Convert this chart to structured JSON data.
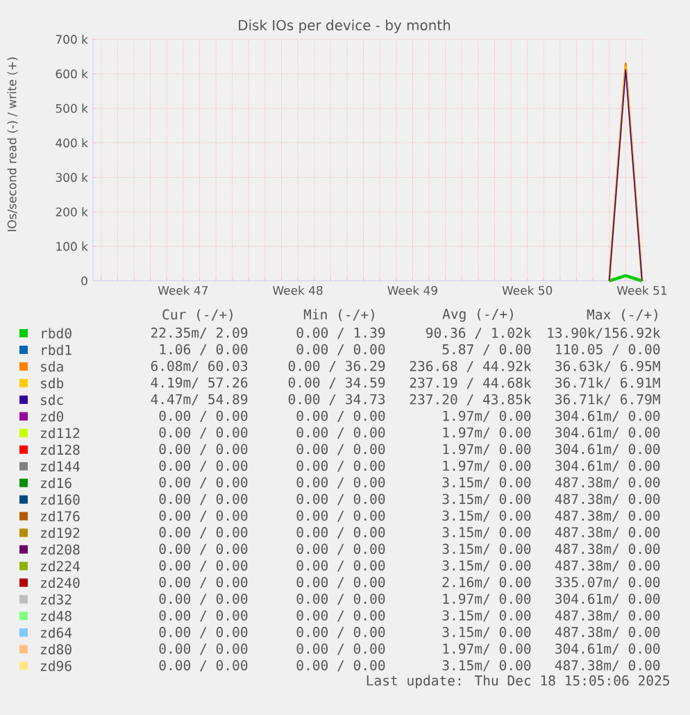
{
  "chart_data": {
    "type": "line",
    "title": "Disk IOs per device - by month",
    "ylabel": "IOs/second read (-) / write (+)",
    "categories": [
      null,
      null,
      null,
      null,
      null,
      "Week 47",
      null,
      null,
      null,
      null,
      null,
      null,
      "Week 48",
      null,
      null,
      null,
      null,
      null,
      null,
      "Week 49",
      null,
      null,
      null,
      null,
      null,
      null,
      "Week 50",
      null,
      null,
      null,
      null,
      null,
      null,
      "Week 51"
    ],
    "ylim": [
      0,
      700000
    ],
    "yticks": [
      0,
      {
        "value": 100000,
        "label": "100 k"
      },
      {
        "value": 200000,
        "label": "200 k"
      },
      {
        "value": 300000,
        "label": "300 k"
      },
      {
        "value": 400000,
        "label": "400 k"
      },
      {
        "value": 500000,
        "label": "500 k"
      },
      {
        "value": 600000,
        "label": "600 k"
      },
      {
        "value": 700000,
        "label": "700 k"
      }
    ],
    "grid": true,
    "legend": "bottom",
    "marker": "none",
    "line_style": "solid",
    "series": [
      {
        "name": "rbd0",
        "color": "#00cc00",
        "values": [
          null,
          null,
          null,
          null,
          null,
          null,
          null,
          null,
          null,
          null,
          null,
          null,
          null,
          null,
          null,
          null,
          null,
          null,
          null,
          null,
          null,
          null,
          null,
          null,
          null,
          null,
          null,
          null,
          null,
          null,
          null,
          0,
          15000,
          0
        ]
      },
      {
        "name": "rbd1",
        "color": "#0066b3",
        "values": [
          null,
          null,
          null,
          null,
          null,
          null,
          null,
          null,
          null,
          null,
          null,
          null,
          null,
          null,
          null,
          null,
          null,
          null,
          null,
          null,
          null,
          null,
          null,
          null,
          null,
          null,
          null,
          null,
          null,
          null,
          null,
          null,
          null,
          null
        ]
      },
      {
        "name": "sda",
        "color": "#ff8000",
        "values": [
          null,
          null,
          null,
          null,
          null,
          null,
          null,
          null,
          null,
          null,
          null,
          null,
          null,
          null,
          null,
          null,
          null,
          null,
          null,
          null,
          null,
          null,
          null,
          null,
          null,
          null,
          null,
          null,
          null,
          null,
          null,
          0,
          630000,
          0
        ]
      },
      {
        "name": "sdb",
        "color": "#ffcc00",
        "values": [
          null,
          null,
          null,
          null,
          null,
          null,
          null,
          null,
          null,
          null,
          null,
          null,
          null,
          null,
          null,
          null,
          null,
          null,
          null,
          null,
          null,
          null,
          null,
          null,
          null,
          null,
          null,
          null,
          null,
          null,
          null,
          0,
          620000,
          0
        ]
      },
      {
        "name": "sdc",
        "color": "#330099",
        "values": [
          null,
          null,
          null,
          null,
          null,
          null,
          null,
          null,
          null,
          null,
          null,
          null,
          null,
          null,
          null,
          null,
          null,
          null,
          null,
          null,
          null,
          null,
          null,
          null,
          null,
          null,
          null,
          null,
          null,
          null,
          null,
          0,
          612000,
          0
        ]
      },
      {
        "name": "zd0",
        "color": "#990099",
        "values": [
          null,
          null,
          null,
          null,
          null,
          null,
          null,
          null,
          null,
          null,
          null,
          null,
          null,
          null,
          null,
          null,
          null,
          null,
          null,
          null,
          null,
          null,
          null,
          null,
          null,
          null,
          null,
          null,
          null,
          null,
          null,
          null,
          null,
          null
        ]
      },
      {
        "name": "zd112",
        "color": "#ccff00",
        "values": [
          null,
          null,
          null,
          null,
          null,
          null,
          null,
          null,
          null,
          null,
          null,
          null,
          null,
          null,
          null,
          null,
          null,
          null,
          null,
          null,
          null,
          null,
          null,
          null,
          null,
          null,
          null,
          null,
          null,
          null,
          null,
          null,
          null,
          null
        ]
      },
      {
        "name": "zd128",
        "color": "#ff0000",
        "values": [
          null,
          null,
          null,
          null,
          null,
          null,
          null,
          null,
          null,
          null,
          null,
          null,
          null,
          null,
          null,
          null,
          null,
          null,
          null,
          null,
          null,
          null,
          null,
          null,
          null,
          null,
          null,
          null,
          null,
          null,
          null,
          null,
          null,
          null
        ]
      },
      {
        "name": "zd144",
        "color": "#808080",
        "values": [
          null,
          null,
          null,
          null,
          null,
          null,
          null,
          null,
          null,
          null,
          null,
          null,
          null,
          null,
          null,
          null,
          null,
          null,
          null,
          null,
          null,
          null,
          null,
          null,
          null,
          null,
          null,
          null,
          null,
          null,
          null,
          null,
          null,
          null
        ]
      },
      {
        "name": "zd16",
        "color": "#008f00",
        "values": [
          null,
          null,
          null,
          null,
          null,
          null,
          null,
          null,
          null,
          null,
          null,
          null,
          null,
          null,
          null,
          null,
          null,
          null,
          null,
          null,
          null,
          null,
          null,
          null,
          null,
          null,
          null,
          null,
          null,
          null,
          null,
          null,
          null,
          null
        ]
      },
      {
        "name": "zd160",
        "color": "#00487d",
        "values": [
          null,
          null,
          null,
          null,
          null,
          null,
          null,
          null,
          null,
          null,
          null,
          null,
          null,
          null,
          null,
          null,
          null,
          null,
          null,
          null,
          null,
          null,
          null,
          null,
          null,
          null,
          null,
          null,
          null,
          null,
          null,
          null,
          null,
          null
        ]
      },
      {
        "name": "zd176",
        "color": "#b35a00",
        "values": [
          null,
          null,
          null,
          null,
          null,
          null,
          null,
          null,
          null,
          null,
          null,
          null,
          null,
          null,
          null,
          null,
          null,
          null,
          null,
          null,
          null,
          null,
          null,
          null,
          null,
          null,
          null,
          null,
          null,
          null,
          null,
          null,
          null,
          null
        ]
      },
      {
        "name": "zd192",
        "color": "#b38f00",
        "values": [
          null,
          null,
          null,
          null,
          null,
          null,
          null,
          null,
          null,
          null,
          null,
          null,
          null,
          null,
          null,
          null,
          null,
          null,
          null,
          null,
          null,
          null,
          null,
          null,
          null,
          null,
          null,
          null,
          null,
          null,
          null,
          null,
          null,
          null
        ]
      },
      {
        "name": "zd208",
        "color": "#6b006b",
        "values": [
          null,
          null,
          null,
          null,
          null,
          null,
          null,
          null,
          null,
          null,
          null,
          null,
          null,
          null,
          null,
          null,
          null,
          null,
          null,
          null,
          null,
          null,
          null,
          null,
          null,
          null,
          null,
          null,
          null,
          null,
          null,
          null,
          null,
          null
        ]
      },
      {
        "name": "zd224",
        "color": "#8fb300",
        "values": [
          null,
          null,
          null,
          null,
          null,
          null,
          null,
          null,
          null,
          null,
          null,
          null,
          null,
          null,
          null,
          null,
          null,
          null,
          null,
          null,
          null,
          null,
          null,
          null,
          null,
          null,
          null,
          null,
          null,
          null,
          null,
          null,
          null,
          null
        ]
      },
      {
        "name": "zd240",
        "color": "#b30000",
        "values": [
          null,
          null,
          null,
          null,
          null,
          null,
          null,
          null,
          null,
          null,
          null,
          null,
          null,
          null,
          null,
          null,
          null,
          null,
          null,
          null,
          null,
          null,
          null,
          null,
          null,
          null,
          null,
          null,
          null,
          null,
          null,
          null,
          null,
          null
        ]
      },
      {
        "name": "zd32",
        "color": "#bebebe",
        "values": [
          null,
          null,
          null,
          null,
          null,
          null,
          null,
          null,
          null,
          null,
          null,
          null,
          null,
          null,
          null,
          null,
          null,
          null,
          null,
          null,
          null,
          null,
          null,
          null,
          null,
          null,
          null,
          null,
          null,
          null,
          null,
          null,
          null,
          null
        ]
      },
      {
        "name": "zd48",
        "color": "#80ff80",
        "values": [
          null,
          null,
          null,
          null,
          null,
          null,
          null,
          null,
          null,
          null,
          null,
          null,
          null,
          null,
          null,
          null,
          null,
          null,
          null,
          null,
          null,
          null,
          null,
          null,
          null,
          null,
          null,
          null,
          null,
          null,
          null,
          null,
          null,
          null
        ]
      },
      {
        "name": "zd64",
        "color": "#80c9ff",
        "values": [
          null,
          null,
          null,
          null,
          null,
          null,
          null,
          null,
          null,
          null,
          null,
          null,
          null,
          null,
          null,
          null,
          null,
          null,
          null,
          null,
          null,
          null,
          null,
          null,
          null,
          null,
          null,
          null,
          null,
          null,
          null,
          null,
          null,
          null
        ]
      },
      {
        "name": "zd80",
        "color": "#ffc080",
        "values": [
          null,
          null,
          null,
          null,
          null,
          null,
          null,
          null,
          null,
          null,
          null,
          null,
          null,
          null,
          null,
          null,
          null,
          null,
          null,
          null,
          null,
          null,
          null,
          null,
          null,
          null,
          null,
          null,
          null,
          null,
          null,
          null,
          null,
          null
        ]
      },
      {
        "name": "zd96",
        "color": "#ffe680",
        "values": [
          null,
          null,
          null,
          null,
          null,
          null,
          null,
          null,
          null,
          null,
          null,
          null,
          null,
          null,
          null,
          null,
          null,
          null,
          null,
          null,
          null,
          null,
          null,
          null,
          null,
          null,
          null,
          null,
          null,
          null,
          null,
          null,
          null,
          null
        ]
      }
    ],
    "annotations": [
      "Cur (-/+)",
      "Min (-/+)",
      "Avg (-/+)",
      "Max (-/+)",
      "22.35m/  2.09",
      "0.00 /  1.39",
      "90.36 /  1.02k",
      "13.90k/156.92k",
      "1.06 /  0.00",
      "0.00 /  0.00",
      "5.87 /  0.00",
      "110.05 /  0.00",
      "6.08m/ 60.03",
      "0.00 / 36.29",
      "236.68 / 44.92k",
      "36.63k/  6.95M",
      "4.19m/ 57.26",
      "0.00 / 34.59",
      "237.19 / 44.68k",
      "36.71k/  6.91M",
      "4.47m/ 54.89",
      "0.00 / 34.73",
      "237.20 / 43.85k",
      "36.71k/  6.79M",
      "0.00 /  0.00",
      "0.00 /  0.00",
      "1.97m/  0.00",
      "304.61m/  0.00",
      "0.00 /  0.00",
      "0.00 /  0.00",
      "1.97m/  0.00",
      "304.61m/  0.00",
      "0.00 /  0.00",
      "0.00 /  0.00",
      "1.97m/  0.00",
      "304.61m/  0.00",
      "0.00 /  0.00",
      "0.00 /  0.00",
      "1.97m/  0.00",
      "304.61m/  0.00",
      "0.00 /  0.00",
      "0.00 /  0.00",
      "3.15m/  0.00",
      "487.38m/  0.00",
      "0.00 /  0.00",
      "0.00 /  0.00",
      "3.15m/  0.00",
      "487.38m/  0.00",
      "0.00 /  0.00",
      "0.00 /  0.00",
      "3.15m/  0.00",
      "487.38m/  0.00",
      "0.00 /  0.00",
      "0.00 /  0.00",
      "3.15m/  0.00",
      "487.38m/  0.00",
      "0.00 /  0.00",
      "0.00 /  0.00",
      "3.15m/  0.00",
      "487.38m/  0.00",
      "0.00 /  0.00",
      "0.00 /  0.00",
      "3.15m/  0.00",
      "487.38m/  0.00",
      "0.00 /  0.00",
      "0.00 /  0.00",
      "2.16m/  0.00",
      "335.07m/  0.00",
      "0.00 /  0.00",
      "0.00 /  0.00",
      "1.97m/  0.00",
      "304.61m/  0.00",
      "0.00 /  0.00",
      "0.00 /  0.00",
      "3.15m/  0.00",
      "487.38m/  0.00",
      "0.00 /  0.00",
      "0.00 /  0.00",
      "3.15m/  0.00",
      "487.38m/  0.00",
      "0.00 /  0.00",
      "0.00 /  0.00",
      "1.97m/  0.00",
      "304.61m/  0.00",
      "0.00 /  0.00",
      "0.00 /  0.00",
      "3.15m/  0.00",
      "487.38m/  0.00",
      "Last update: Thu Dec 18 15:05:06 2025"
    ]
  }
}
